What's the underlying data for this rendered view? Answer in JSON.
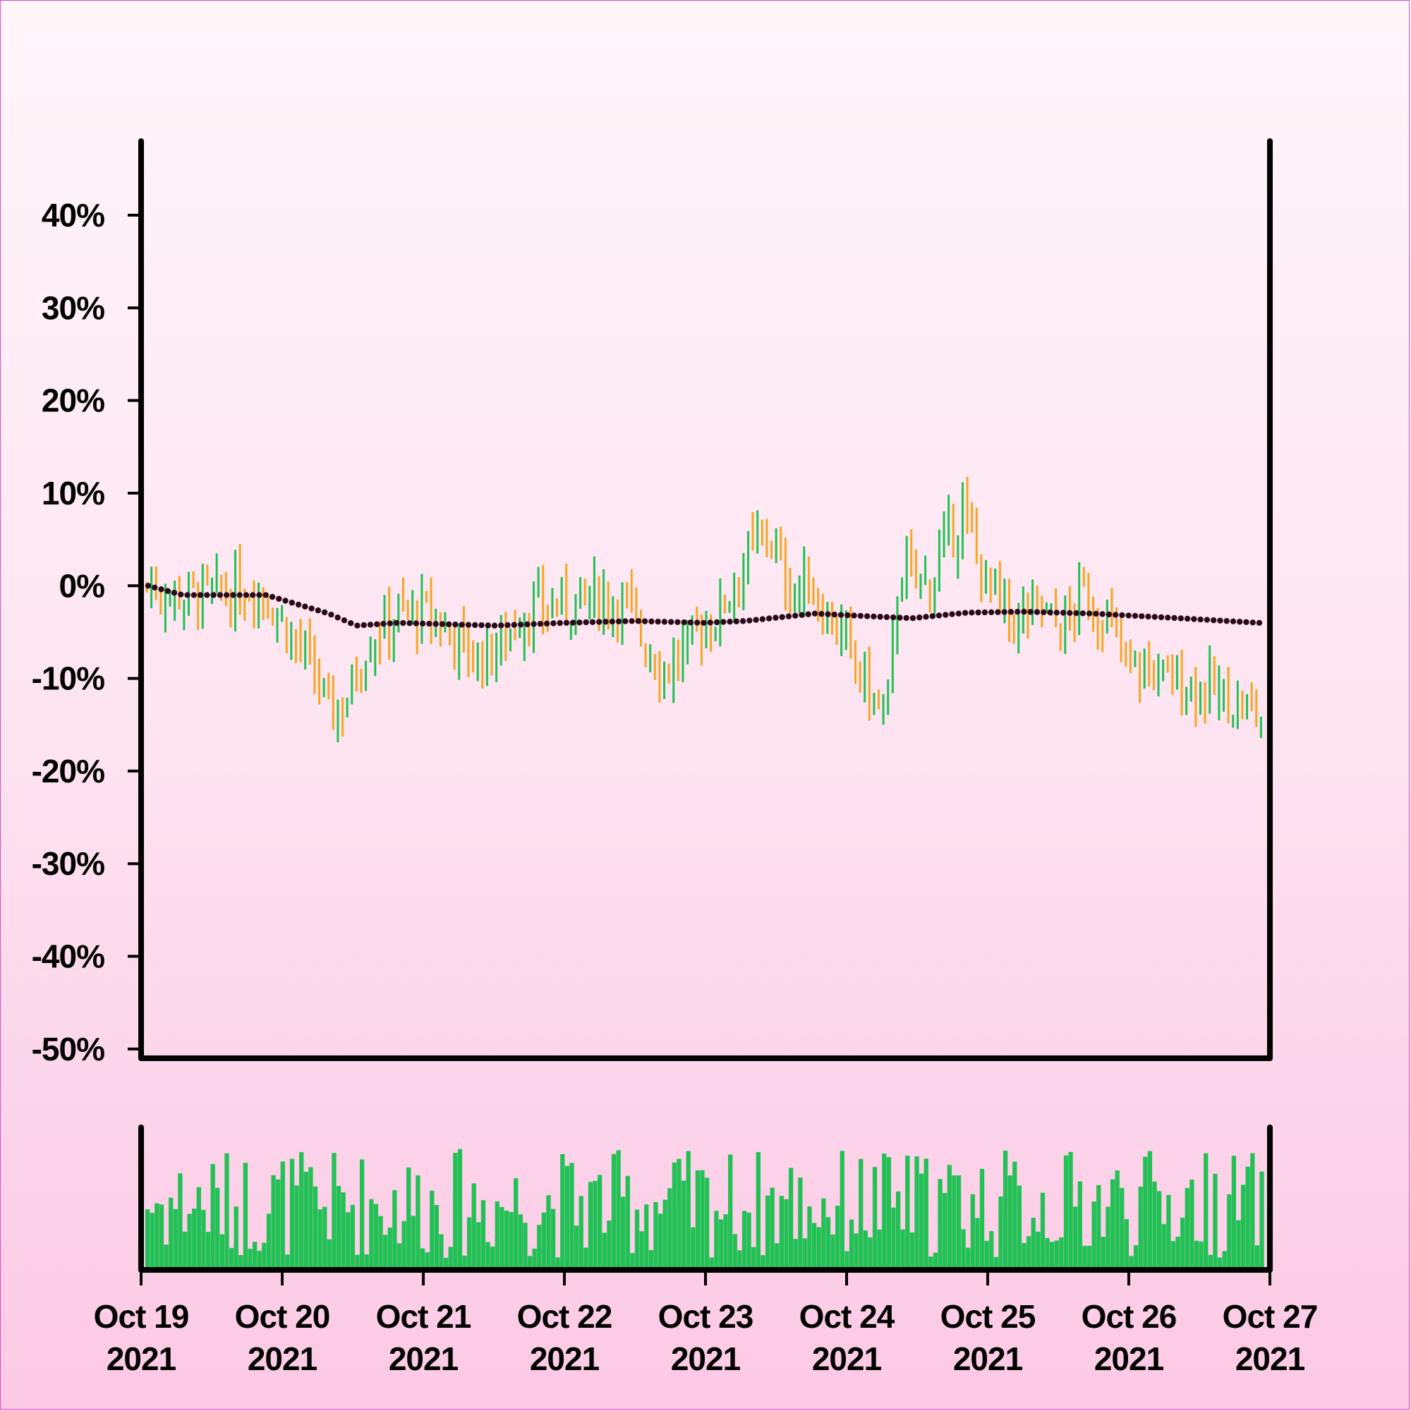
{
  "chart_data": {
    "type": "ohlc",
    "x_axis": {
      "ticks": [
        {
          "line1": "Oct 19",
          "line2": "2021"
        },
        {
          "line1": "Oct 20",
          "line2": "2021"
        },
        {
          "line1": "Oct 21",
          "line2": "2021"
        },
        {
          "line1": "Oct 22",
          "line2": "2021"
        },
        {
          "line1": "Oct 23",
          "line2": "2021"
        },
        {
          "line1": "Oct 24",
          "line2": "2021"
        },
        {
          "line1": "Oct 25",
          "line2": "2021"
        },
        {
          "line1": "Oct 26",
          "line2": "2021"
        },
        {
          "line1": "Oct 27",
          "line2": "2021"
        }
      ],
      "range": [
        "2021-10-19",
        "2021-10-27"
      ]
    },
    "y_axis": {
      "ticks": [
        "40%",
        "30%",
        "20%",
        "10%",
        "0%",
        "-10%",
        "-20%",
        "-30%",
        "-40%",
        "-50%"
      ],
      "tick_values": [
        40,
        30,
        20,
        10,
        0,
        -10,
        -20,
        -30,
        -40,
        -50
      ],
      "range": [
        -51,
        48
      ],
      "unit": "%"
    },
    "price_close_path_percent": [
      [
        0,
        0
      ],
      [
        0.3,
        -1
      ],
      [
        0.6,
        -1
      ],
      [
        0.8,
        0
      ],
      [
        1.0,
        -4
      ],
      [
        1.15,
        -8
      ],
      [
        1.35,
        -14
      ],
      [
        1.45,
        -12
      ],
      [
        1.6,
        -6
      ],
      [
        1.8,
        -3
      ],
      [
        2.0,
        -3
      ],
      [
        2.2,
        -5
      ],
      [
        2.35,
        -8
      ],
      [
        2.5,
        -7
      ],
      [
        2.7,
        -3
      ],
      [
        3.0,
        -2
      ],
      [
        3.3,
        -1
      ],
      [
        3.45,
        -2
      ],
      [
        3.6,
        -7
      ],
      [
        3.75,
        -9
      ],
      [
        3.9,
        -6
      ],
      [
        4.1,
        -3
      ],
      [
        4.3,
        3
      ],
      [
        4.45,
        6
      ],
      [
        4.6,
        0
      ],
      [
        4.75,
        0
      ],
      [
        5.0,
        -6
      ],
      [
        5.2,
        -12
      ],
      [
        5.3,
        -15
      ],
      [
        5.4,
        2
      ],
      [
        5.6,
        0
      ],
      [
        5.75,
        5
      ],
      [
        5.85,
        8
      ],
      [
        6.0,
        1
      ],
      [
        6.2,
        -4
      ],
      [
        6.4,
        -2
      ],
      [
        6.55,
        -5
      ],
      [
        6.7,
        -1
      ],
      [
        6.9,
        -4
      ],
      [
        7.0,
        -8
      ],
      [
        7.3,
        -10
      ],
      [
        7.6,
        -11
      ],
      [
        7.8,
        -13
      ],
      [
        8.0,
        -14
      ]
    ],
    "moving_average_percent": [
      [
        0,
        0
      ],
      [
        0.25,
        -1
      ],
      [
        0.5,
        -1
      ],
      [
        0.85,
        -1
      ],
      [
        1.3,
        -3
      ],
      [
        1.5,
        -4.3
      ],
      [
        1.8,
        -4
      ],
      [
        2.5,
        -4.3
      ],
      [
        3.0,
        -4
      ],
      [
        3.5,
        -3.8
      ],
      [
        4.0,
        -4
      ],
      [
        4.3,
        -3.8
      ],
      [
        4.8,
        -3
      ],
      [
        5.2,
        -3.3
      ],
      [
        5.5,
        -3.5
      ],
      [
        5.9,
        -2.9
      ],
      [
        6.3,
        -2.8
      ],
      [
        6.8,
        -3
      ],
      [
        7.3,
        -3.4
      ],
      [
        8.0,
        -4
      ]
    ],
    "bar_colors": {
      "up": "#22c055",
      "down": "#f5a623"
    },
    "moving_average_color": "#2a0a1a",
    "volume": {
      "color": "#22c055",
      "relative_range": [
        0,
        1
      ]
    },
    "grid": false,
    "legend": "none"
  }
}
